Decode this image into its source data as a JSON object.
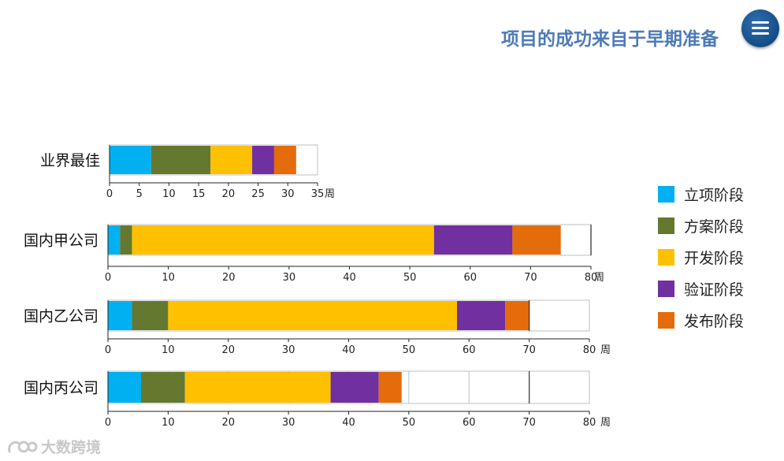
{
  "header": {
    "title": "项目的成功来自于早期准备",
    "menu_icon": "hamburger-menu-icon"
  },
  "colors": {
    "立项阶段": "#00b0f0",
    "方案阶段": "#65782f",
    "开发阶段": "#ffc000",
    "验证阶段": "#7030a0",
    "发布阶段": "#e46c0a"
  },
  "legend": {
    "placement": "right",
    "items": [
      "立项阶段",
      "方案阶段",
      "开发阶段",
      "验证阶段",
      "发布阶段"
    ]
  },
  "watermark": {
    "text": "大数跨境",
    "logo_icon": "brand-logo-icon"
  },
  "chart_data": [
    {
      "type": "bar",
      "orientation": "horizontal-stacked",
      "category": "业界最佳",
      "unit": "周",
      "xlim": [
        0,
        35
      ],
      "ticks": [
        "0",
        "5",
        "10",
        "15",
        "20",
        "25",
        "30",
        "35"
      ],
      "grid": false,
      "series": [
        {
          "name": "立项阶段",
          "value": 7
        },
        {
          "name": "方案阶段",
          "value": 10
        },
        {
          "name": "开发阶段",
          "value": 7
        },
        {
          "name": "验证阶段",
          "value": 3.7
        },
        {
          "name": "发布阶段",
          "value": 3.7
        }
      ]
    },
    {
      "type": "bar",
      "orientation": "horizontal-stacked",
      "category": "国内甲公司",
      "unit": "周",
      "xlim": [
        0,
        80
      ],
      "ticks": [
        "0",
        "10",
        "20",
        "30",
        "40",
        "50",
        "60",
        "70",
        "80"
      ],
      "grid": false,
      "series": [
        {
          "name": "立项阶段",
          "value": 2
        },
        {
          "name": "方案阶段",
          "value": 2
        },
        {
          "name": "开发阶段",
          "value": 50
        },
        {
          "name": "验证阶段",
          "value": 13
        },
        {
          "name": "发布阶段",
          "value": 8
        }
      ]
    },
    {
      "type": "bar",
      "orientation": "horizontal-stacked",
      "category": "国内乙公司",
      "unit": "周",
      "xlim": [
        0,
        80
      ],
      "ticks": [
        "0",
        "10",
        "20",
        "30",
        "40",
        "50",
        "60",
        "70",
        "80"
      ],
      "grid": false,
      "series": [
        {
          "name": "立项阶段",
          "value": 4
        },
        {
          "name": "方案阶段",
          "value": 6
        },
        {
          "name": "开发阶段",
          "value": 48
        },
        {
          "name": "验证阶段",
          "value": 8
        },
        {
          "name": "发布阶段",
          "value": 4
        }
      ]
    },
    {
      "type": "bar",
      "orientation": "horizontal-stacked",
      "category": "国内丙公司",
      "unit": "周",
      "xlim": [
        0,
        80
      ],
      "ticks": [
        "0",
        "10",
        "20",
        "30",
        "40",
        "50",
        "60",
        "70",
        "80"
      ],
      "grid": true,
      "series": [
        {
          "name": "立项阶段",
          "value": 5.5
        },
        {
          "name": "方案阶段",
          "value": 7.3
        },
        {
          "name": "开发阶段",
          "value": 24.2
        },
        {
          "name": "验证阶段",
          "value": 8
        },
        {
          "name": "发布阶段",
          "value": 3.8
        }
      ]
    }
  ]
}
